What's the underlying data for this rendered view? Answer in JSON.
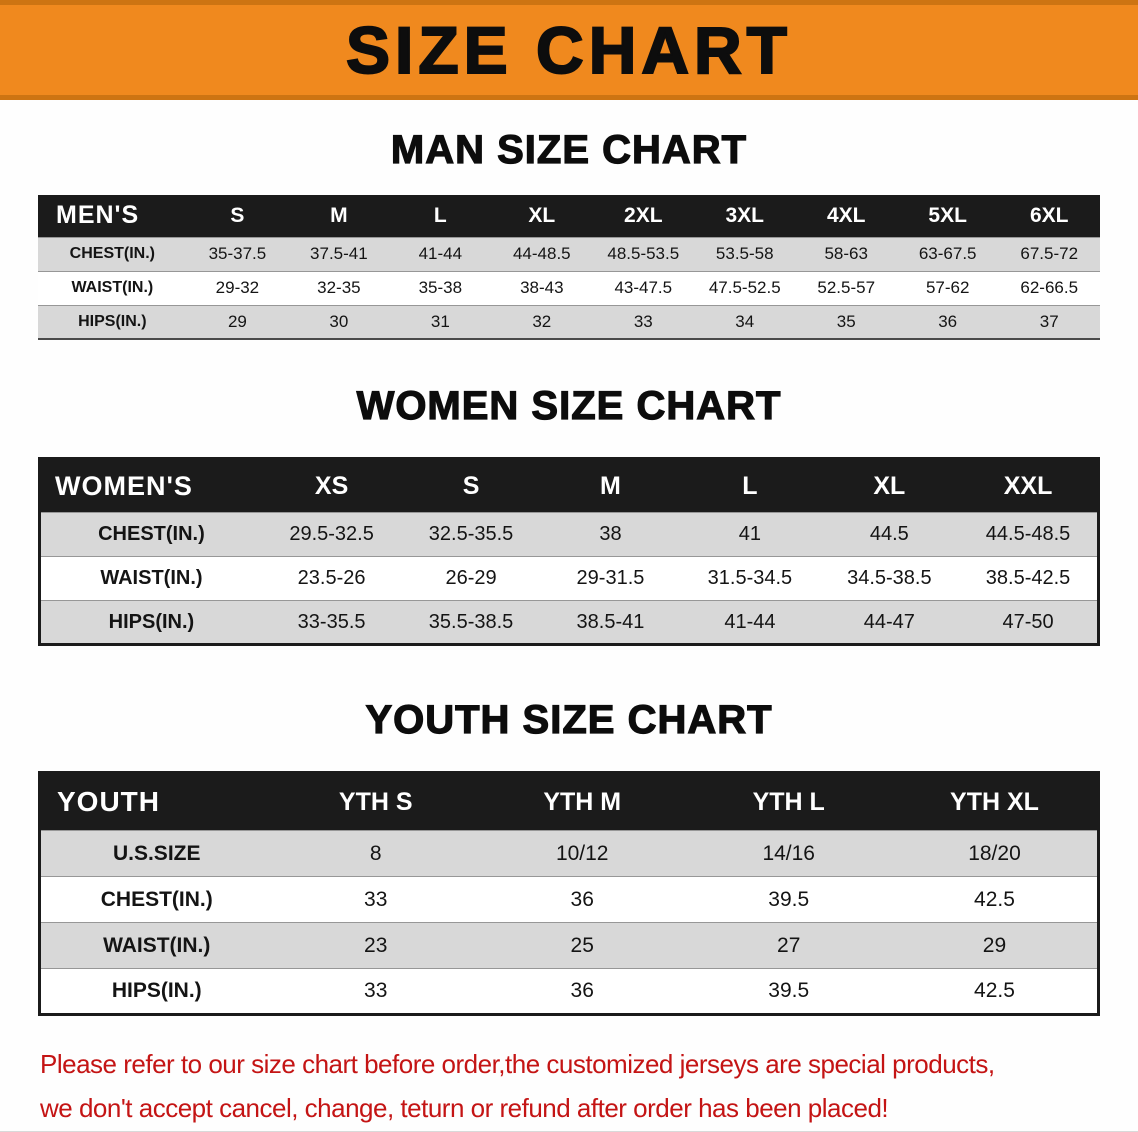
{
  "banner": {
    "title": "SIZE CHART"
  },
  "colors": {
    "banner_orange": "#f0891e",
    "table_header_black": "#1b1b1b",
    "shaded_row_gray": "#d8d8d8",
    "footer_red": "#c41414"
  },
  "chart_data": [
    {
      "type": "table",
      "title": "MAN SIZE CHART",
      "label": "MEN'S",
      "columns": [
        "S",
        "M",
        "L",
        "XL",
        "2XL",
        "3XL",
        "4XL",
        "5XL",
        "6XL"
      ],
      "rows": [
        {
          "label": "CHEST(IN.)",
          "values": [
            "35-37.5",
            "37.5-41",
            "41-44",
            "44-48.5",
            "48.5-53.5",
            "53.5-58",
            "58-63",
            "63-67.5",
            "67.5-72"
          ]
        },
        {
          "label": "WAIST(IN.)",
          "values": [
            "29-32",
            "32-35",
            "35-38",
            "38-43",
            "43-47.5",
            "47.5-52.5",
            "52.5-57",
            "57-62",
            "62-66.5"
          ]
        },
        {
          "label": "HIPS(IN.)",
          "values": [
            "29",
            "30",
            "31",
            "32",
            "33",
            "34",
            "35",
            "36",
            "37"
          ]
        }
      ]
    },
    {
      "type": "table",
      "title": "WOMEN SIZE CHART",
      "label": "WOMEN'S",
      "columns": [
        "XS",
        "S",
        "M",
        "L",
        "XL",
        "XXL"
      ],
      "rows": [
        {
          "label": "CHEST(IN.)",
          "values": [
            "29.5-32.5",
            "32.5-35.5",
            "38",
            "41",
            "44.5",
            "44.5-48.5"
          ]
        },
        {
          "label": "WAIST(IN.)",
          "values": [
            "23.5-26",
            "26-29",
            "29-31.5",
            "31.5-34.5",
            "34.5-38.5",
            "38.5-42.5"
          ]
        },
        {
          "label": "HIPS(IN.)",
          "values": [
            "33-35.5",
            "35.5-38.5",
            "38.5-41",
            "41-44",
            "44-47",
            "47-50"
          ]
        }
      ]
    },
    {
      "type": "table",
      "title": "YOUTH SIZE CHART",
      "label": "YOUTH",
      "columns": [
        "YTH S",
        "YTH M",
        "YTH L",
        "YTH XL"
      ],
      "rows": [
        {
          "label": "U.S.SIZE",
          "values": [
            "8",
            "10/12",
            "14/16",
            "18/20"
          ]
        },
        {
          "label": "CHEST(IN.)",
          "values": [
            "33",
            "36",
            "39.5",
            "42.5"
          ]
        },
        {
          "label": "WAIST(IN.)",
          "values": [
            "23",
            "25",
            "27",
            "29"
          ]
        },
        {
          "label": "HIPS(IN.)",
          "values": [
            "33",
            "36",
            "39.5",
            "42.5"
          ]
        }
      ]
    }
  ],
  "footer": {
    "line1": "Please refer to our size chart before order,the customized jerseys are special products,",
    "line2": "we don't accept cancel, change, teturn or refund after order has been placed!"
  }
}
